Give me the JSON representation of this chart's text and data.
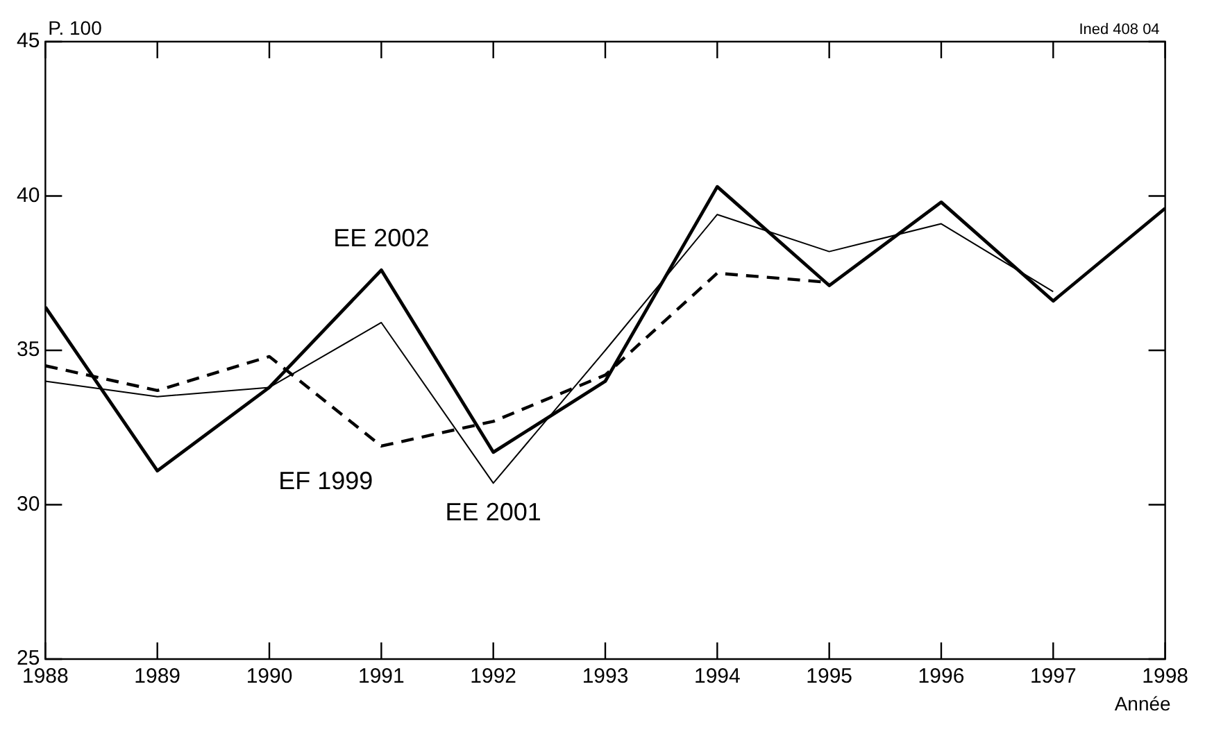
{
  "chart_data": {
    "type": "line",
    "ylabel": "P. 100",
    "xlabel": "Année",
    "annotations": [
      "Ined 408 04"
    ],
    "x": [
      1988,
      1989,
      1990,
      1991,
      1992,
      1993,
      1994,
      1995,
      1996,
      1997,
      1998
    ],
    "series": [
      {
        "name": "EE 2002",
        "color": "#000000",
        "values": [
          36.4,
          31.1,
          33.8,
          37.6,
          31.7,
          34.0,
          40.3,
          37.1,
          39.8,
          36.6,
          39.6
        ]
      },
      {
        "name": "EE 2001",
        "color": "#000000",
        "values": [
          34.0,
          33.5,
          33.8,
          35.9,
          30.7,
          35.0,
          39.4,
          38.2,
          39.1,
          36.9,
          null
        ]
      },
      {
        "name": "EF 1999",
        "color": "#000000",
        "line_style": "dashed",
        "values": [
          34.5,
          33.7,
          34.8,
          31.9,
          32.7,
          34.2,
          37.5,
          37.2,
          null,
          null,
          null
        ]
      }
    ],
    "xlim": [
      1988,
      1998
    ],
    "xticks": [
      1988,
      1989,
      1990,
      1991,
      1992,
      1993,
      1994,
      1995,
      1996,
      1997,
      1998
    ],
    "ylim": [
      25,
      45
    ],
    "yticks": [
      25,
      30,
      35,
      40,
      45
    ],
    "grid": false,
    "legend": false,
    "marker": "none",
    "line_style": "solid"
  }
}
